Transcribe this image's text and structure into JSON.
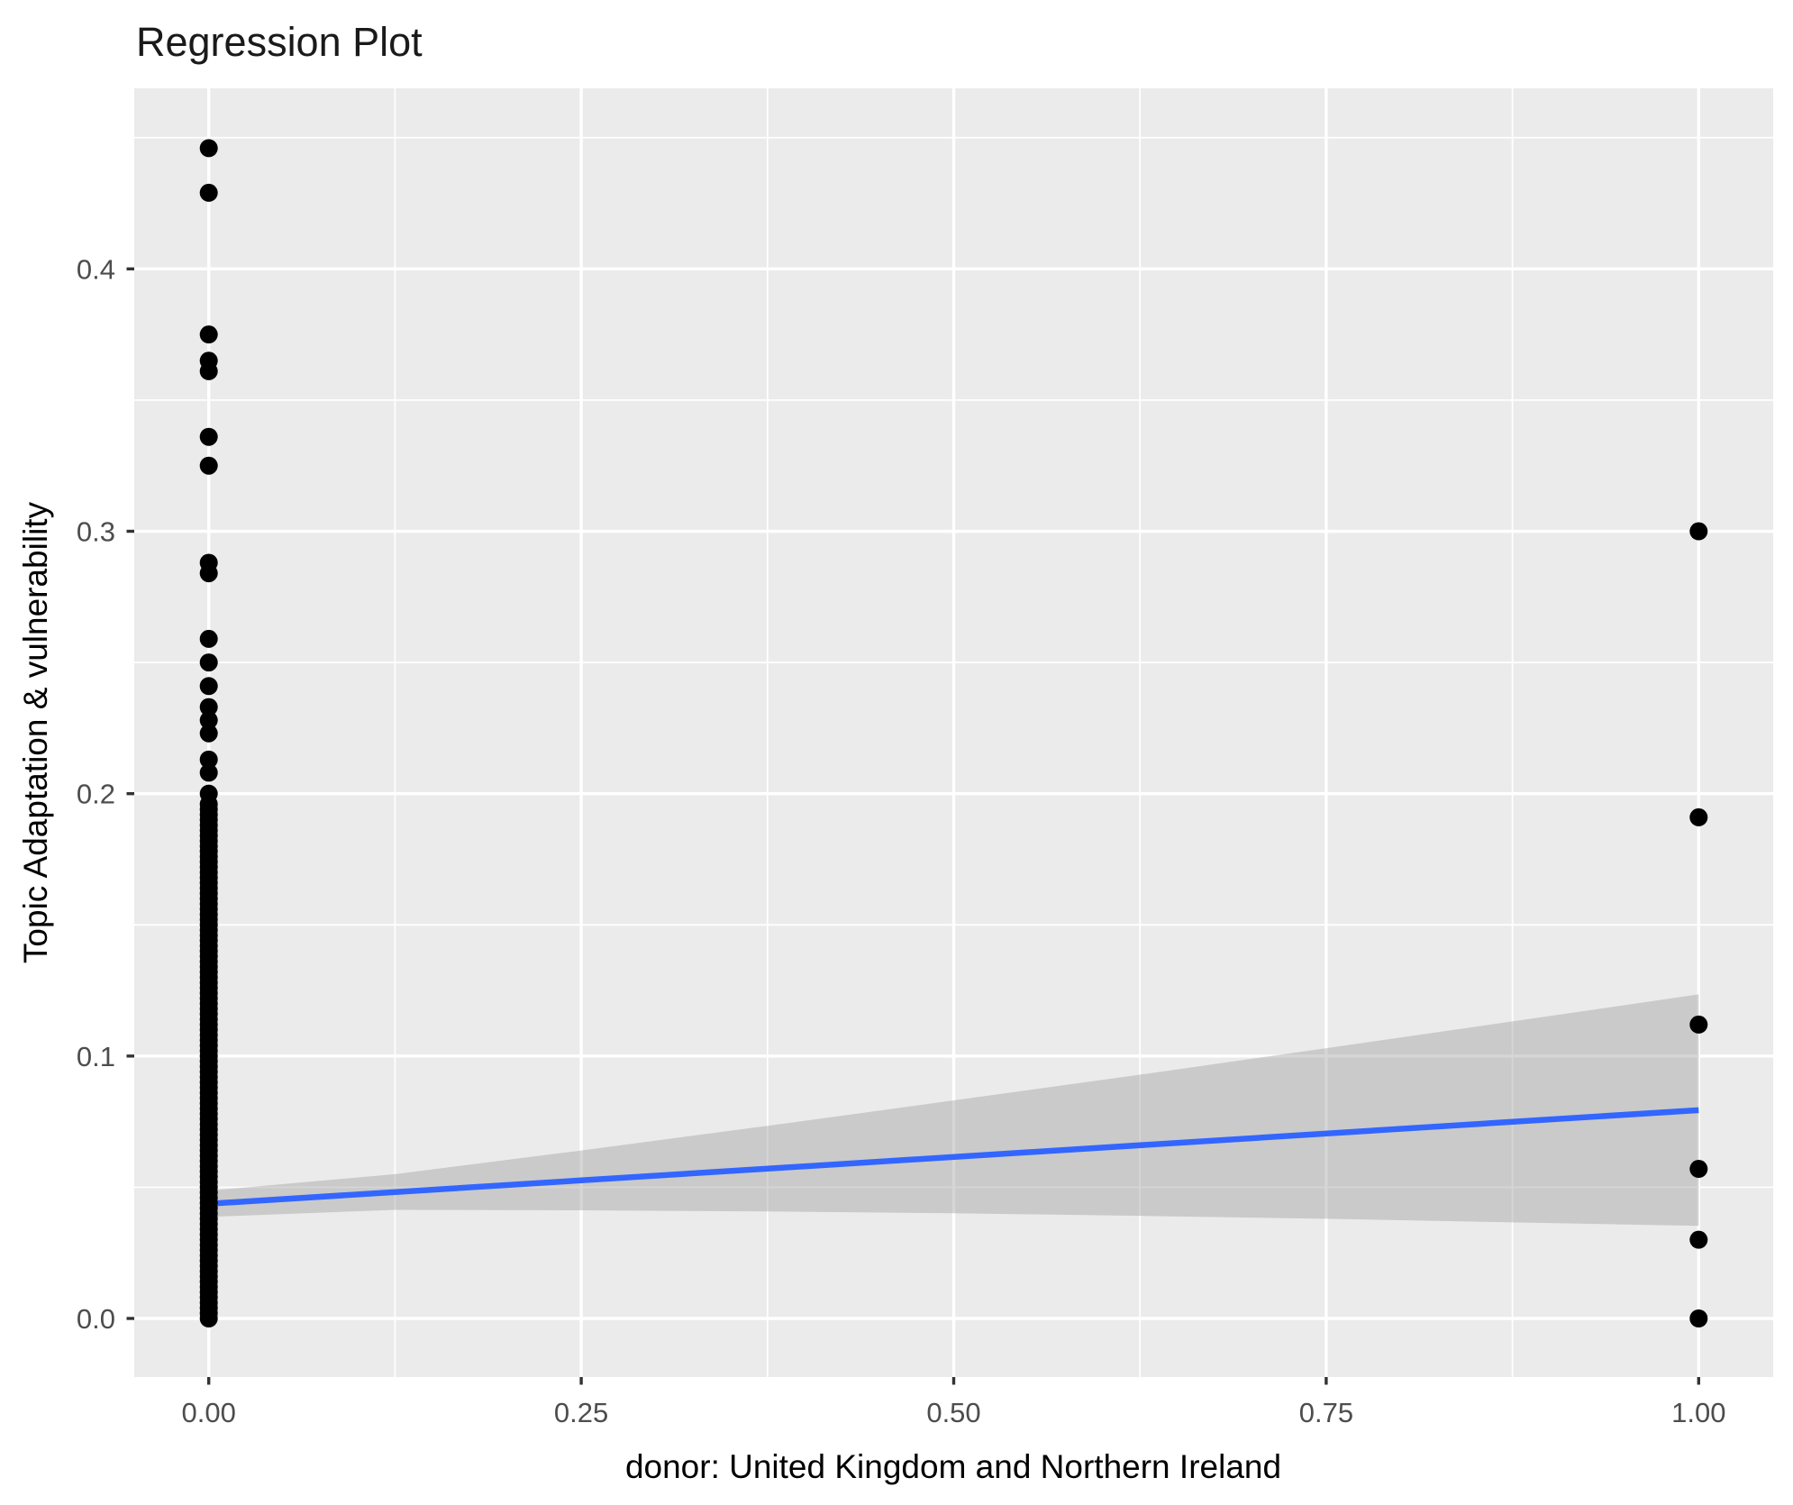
{
  "chart_data": {
    "type": "scatter",
    "title": "Regression Plot",
    "xlabel": "donor: United Kingdom and Northern Ireland",
    "ylabel": "Topic Adaptation & vulnerability",
    "x_ticks": [
      0,
      0.25,
      0.5,
      0.75,
      1
    ],
    "x_tick_labels": [
      "0.00",
      "0.25",
      "0.50",
      "0.75",
      "1.00"
    ],
    "x_minor_ticks": [
      0.125,
      0.375,
      0.625,
      0.875
    ],
    "y_ticks": [
      0,
      0.1,
      0.2,
      0.3,
      0.4
    ],
    "y_tick_labels": [
      "0.0",
      "0.1",
      "0.2",
      "0.3",
      "0.4"
    ],
    "y_minor_ticks": [
      0.05,
      0.15,
      0.25,
      0.35,
      0.45
    ],
    "xlim": [
      -0.05,
      1.05
    ],
    "ylim": [
      -0.0223,
      0.4687
    ],
    "grid": true,
    "legend": false,
    "points": {
      "x0_discrete": [
        0.446,
        0.429,
        0.375,
        0.365,
        0.361,
        0.336,
        0.325,
        0.288,
        0.284,
        0.259,
        0.25,
        0.241,
        0.233,
        0.228,
        0.223,
        0.213,
        0.208,
        0.2,
        0.196
      ],
      "x0_dense_range": {
        "min": 0.0,
        "max": 0.194,
        "step": 0.002
      },
      "x1": [
        0.3,
        0.191,
        0.112,
        0.057,
        0.03,
        0.0
      ]
    },
    "regression_line": {
      "x": [
        0,
        1
      ],
      "y": [
        0.0437,
        0.0794
      ],
      "color": "#3366FF"
    },
    "confidence_band": {
      "x": [
        0,
        0.125,
        0.25,
        0.375,
        0.5,
        0.625,
        0.75,
        0.875,
        1
      ],
      "upper": [
        0.0487,
        0.055,
        0.064,
        0.0734,
        0.0831,
        0.0929,
        0.103,
        0.1132,
        0.1235
      ],
      "lower": [
        0.0387,
        0.0414,
        0.0412,
        0.0408,
        0.0401,
        0.0391,
        0.038,
        0.0366,
        0.0353
      ],
      "fill": "#999999",
      "opacity": 0.4
    },
    "colors": {
      "panel_background": "#EBEBEB",
      "grid": "#FFFFFF",
      "points": "#000000",
      "tick_marks": "#333333",
      "tick_labels": "#4d4d4d",
      "titles": "#000000"
    },
    "point_radius_px": 10
  }
}
